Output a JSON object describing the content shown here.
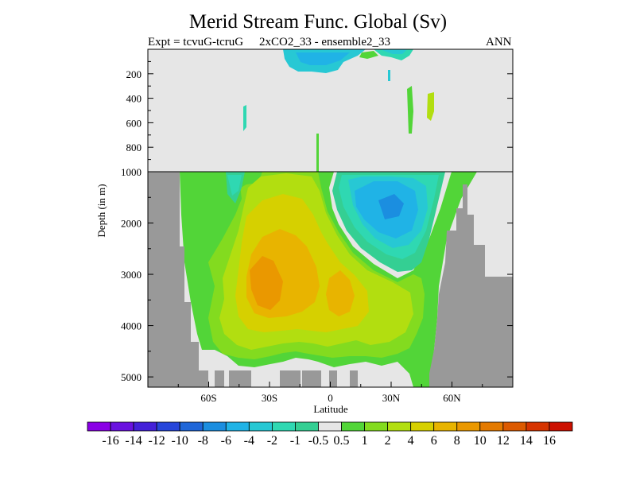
{
  "header": {
    "title": "Merid Stream Func. Global (Sv)",
    "expt_label": "Expt = tcvuG-tcruG",
    "case_label": "2xCO2_33 - ensemble2_33",
    "season": "ANN"
  },
  "chart_data": {
    "type": "heatmap",
    "title": "Merid Stream Func. Global (Sv)",
    "xlabel": "Latitude",
    "ylabel": "Depth (in m)",
    "x_ticks": [
      "60S",
      "30S",
      "0",
      "30N",
      "60N"
    ],
    "y_ticks_upper": [
      "200",
      "400",
      "600",
      "800",
      "1000"
    ],
    "y_ticks_lower": [
      "2000",
      "3000",
      "4000",
      "5000"
    ],
    "xlim": [
      -90,
      90
    ],
    "ylim_upper": [
      0,
      1000
    ],
    "ylim_lower": [
      1000,
      5200
    ],
    "colorbar": {
      "labels": [
        "-16",
        "-14",
        "-12",
        "-10",
        "-8",
        "-6",
        "-4",
        "-2",
        "-1",
        "-0.5",
        "0.5",
        "1",
        "2",
        "4",
        "6",
        "8",
        "10",
        "12",
        "14",
        "16"
      ],
      "colors": [
        "#8a00e6",
        "#6a12e0",
        "#4421d8",
        "#2746da",
        "#1f66d8",
        "#1b8ee0",
        "#20b3e6",
        "#27c8d4",
        "#2fd8b2",
        "#34cf93",
        "#e6e6e6",
        "#52d538",
        "#83db1f",
        "#b2de10",
        "#d6d000",
        "#e8b400",
        "#ea9800",
        "#e47a00",
        "#dc5a00",
        "#d63400",
        "#cc1000"
      ]
    },
    "features": [
      {
        "name": "negative cell",
        "lat_range": [
          15,
          45
        ],
        "depth_range": [
          1000,
          2900
        ],
        "min_value": -4
      },
      {
        "name": "positive cell",
        "lat_range": [
          -40,
          10
        ],
        "depth_range": [
          1000,
          4600
        ],
        "max_value": 8
      },
      {
        "name": "positive patch",
        "lat_range": [
          5,
          15
        ],
        "depth_range": [
          2900,
          3800
        ],
        "max_value": 6
      }
    ]
  }
}
